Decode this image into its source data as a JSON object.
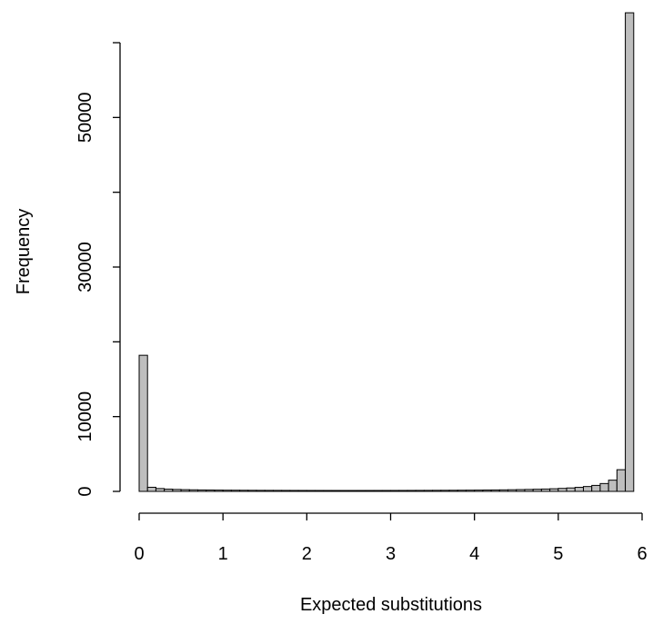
{
  "chart_data": {
    "type": "bar",
    "title": "",
    "xlabel": "Expected substitutions",
    "ylabel": "Frequency",
    "xlim": [
      0,
      6
    ],
    "ylim": [
      0,
      65000
    ],
    "x_ticks": [
      0,
      1,
      2,
      3,
      4,
      5,
      6
    ],
    "x_tick_labels": [
      "0",
      "1",
      "2",
      "3",
      "4",
      "5",
      "6"
    ],
    "y_ticks": [
      0,
      10000,
      20000,
      30000,
      40000,
      50000,
      60000
    ],
    "y_tick_labels": [
      "0",
      "10000",
      "",
      "30000",
      "",
      "50000",
      ""
    ],
    "bin_width": 0.1,
    "bin_starts": [
      0.0,
      0.1,
      0.2,
      0.3,
      0.4,
      0.5,
      0.6,
      0.7,
      0.8,
      0.9,
      1.0,
      1.1,
      1.2,
      1.3,
      1.4,
      1.5,
      1.6,
      1.7,
      1.8,
      1.9,
      2.0,
      2.1,
      2.2,
      2.3,
      2.4,
      2.5,
      2.6,
      2.7,
      2.8,
      2.9,
      3.0,
      3.1,
      3.2,
      3.3,
      3.4,
      3.5,
      3.6,
      3.7,
      3.8,
      3.9,
      4.0,
      4.1,
      4.2,
      4.3,
      4.4,
      4.5,
      4.6,
      4.7,
      4.8,
      4.9,
      5.0,
      5.1,
      5.2,
      5.3,
      5.4,
      5.5,
      5.6,
      5.7,
      5.8
    ],
    "values": [
      18200,
      550,
      380,
      300,
      260,
      230,
      210,
      190,
      180,
      170,
      160,
      155,
      150,
      145,
      140,
      138,
      135,
      132,
      130,
      128,
      126,
      125,
      124,
      123,
      122,
      122,
      123,
      124,
      125,
      126,
      128,
      130,
      132,
      135,
      138,
      142,
      146,
      150,
      156,
      162,
      170,
      180,
      190,
      205,
      220,
      240,
      260,
      285,
      315,
      350,
      400,
      460,
      540,
      650,
      800,
      1050,
      1500,
      2900,
      64000
    ]
  }
}
